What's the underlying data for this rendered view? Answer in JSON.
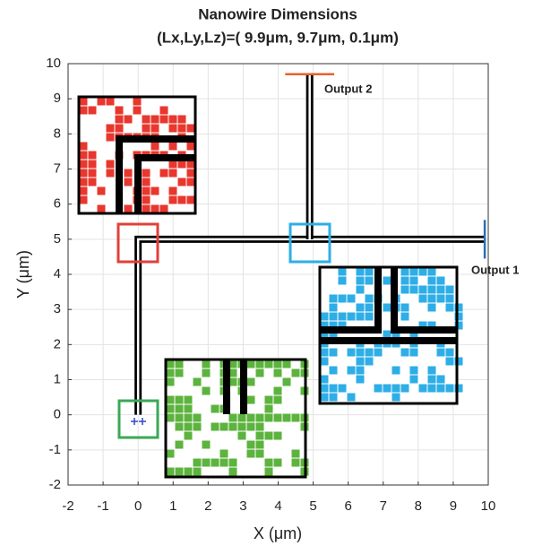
{
  "chart_data": {
    "type": "line",
    "title": "Nanowire Dimensions",
    "subtitle": "(Lx,Ly,Lz)=( 9.9μm, 9.7μm, 0.1μm)",
    "x_label": "X (μm)",
    "y_label": "Y (μm)",
    "annotations": [
      "Output 1",
      "Output 2"
    ],
    "xlim": [
      -2,
      10
    ],
    "ylim": [
      -2,
      10
    ],
    "xticks": [
      -2,
      -1,
      0,
      1,
      2,
      3,
      4,
      5,
      6,
      7,
      8,
      9,
      10
    ],
    "yticks": [
      -2,
      -1,
      0,
      1,
      2,
      3,
      4,
      5,
      6,
      7,
      8,
      9,
      10
    ],
    "grid": true,
    "series": [
      {
        "color": "#000000",
        "x": [
          0,
          0,
          9.9
        ],
        "values": [
          0,
          5,
          5
        ]
      },
      {
        "color": "#000000",
        "x": [
          4.9,
          4.9
        ],
        "values": [
          5,
          9.7
        ]
      },
      {
        "color": "#2a6fb5",
        "x": [
          9.9,
          9.9
        ],
        "values": [
          4.45,
          5.55
        ]
      },
      {
        "color": "#e8602c",
        "x": [
          4.2,
          5.6
        ],
        "values": [
          9.7,
          9.7
        ]
      }
    ]
  }
}
